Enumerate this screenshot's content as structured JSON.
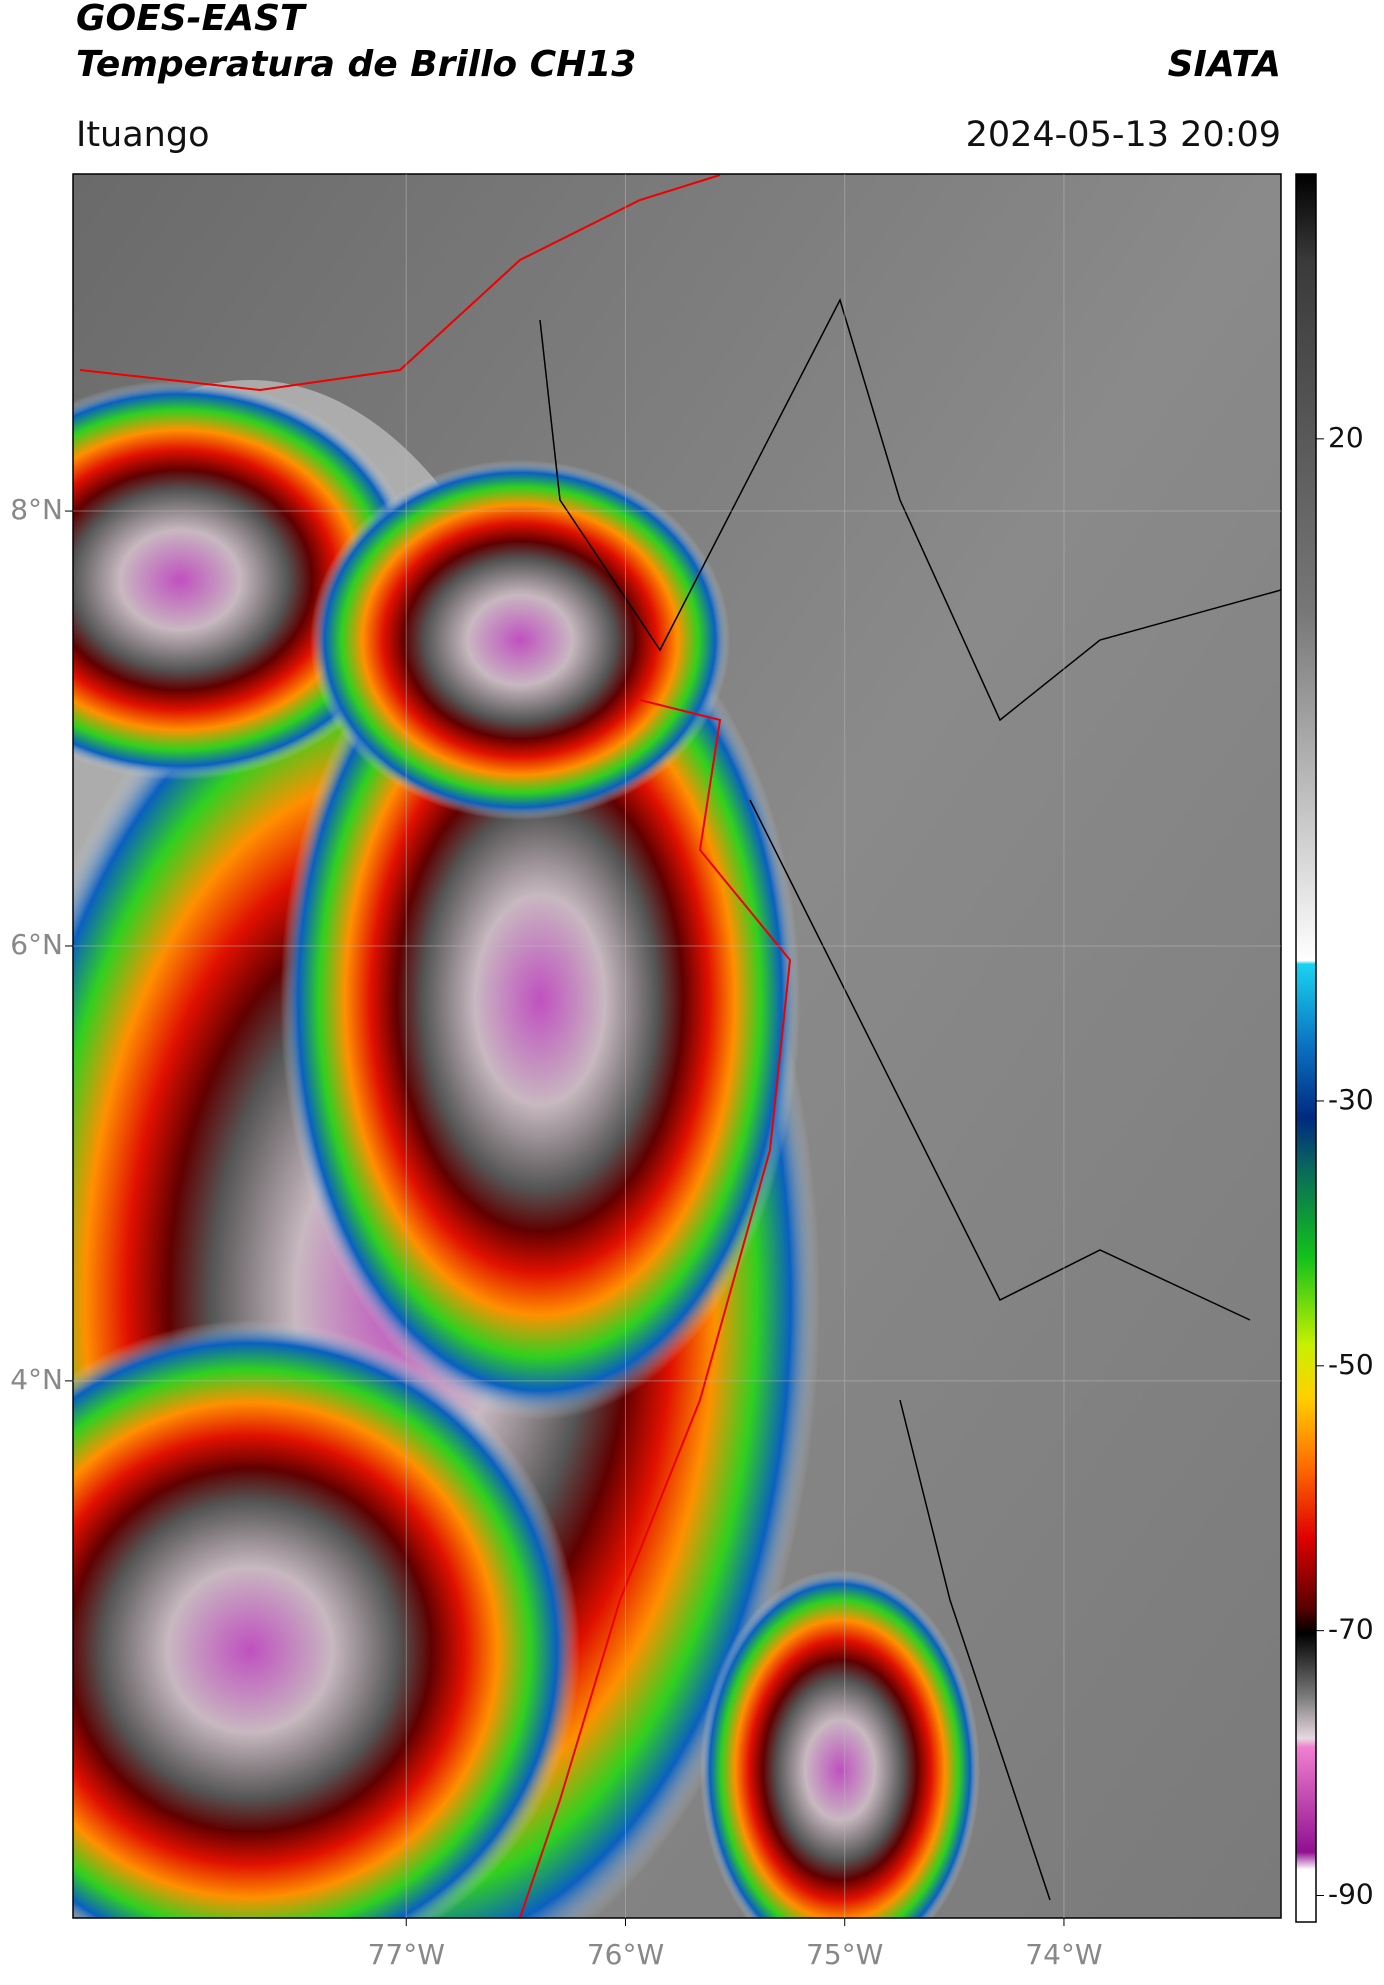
{
  "header": {
    "title": "GOES-EAST",
    "subtitle": "Temperatura de Brillo CH13",
    "source": "SIATA",
    "location": "Ituango",
    "datetime": "2024-05-13 20:09"
  },
  "map": {
    "lonlim": [
      -78.52,
      -73.01
    ],
    "latlim": [
      1.53,
      9.55
    ],
    "lonticks": [
      {
        "value": -77,
        "label": "77°W"
      },
      {
        "value": -76,
        "label": "76°W"
      },
      {
        "value": -75,
        "label": "75°W"
      },
      {
        "value": -74,
        "label": "74°W"
      }
    ],
    "latticks": [
      {
        "value": 8,
        "label": "8°N"
      },
      {
        "value": 6,
        "label": "6°N"
      },
      {
        "value": 4,
        "label": "4°N"
      }
    ],
    "grid": true
  },
  "colorbar": {
    "lim": [
      -92,
      40
    ],
    "ticks": [
      20,
      -30,
      -50,
      -70,
      -90
    ]
  }
}
